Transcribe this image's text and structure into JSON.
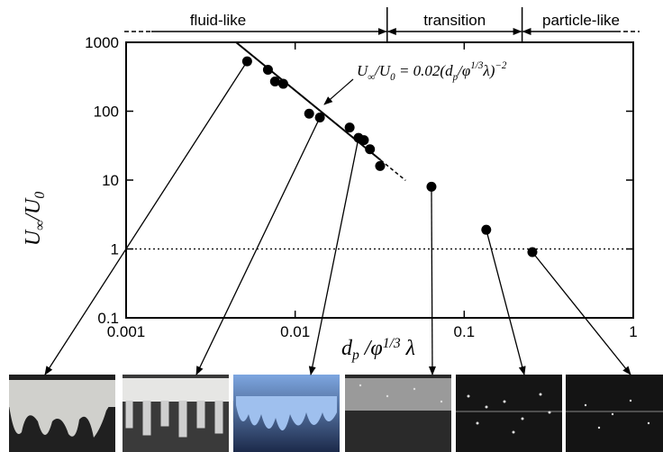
{
  "chart_data": {
    "type": "scatter",
    "xscale": "log",
    "yscale": "log",
    "xlim": [
      0.001,
      1
    ],
    "ylim": [
      0.1,
      1000
    ],
    "xticks": [
      0.001,
      0.01,
      0.1,
      1
    ],
    "yticks": [
      0.1,
      1,
      10,
      100,
      1000
    ],
    "x_label_parts": [
      "d",
      "p",
      " /φ",
      "1/3",
      " λ"
    ],
    "y_label_parts": [
      "U",
      "∞",
      "/U",
      "0"
    ],
    "equation_parts": [
      "U",
      "∞",
      "/U",
      "0",
      " = 0.02(d",
      "p",
      "/φ",
      "1/3",
      "λ)",
      "−2"
    ],
    "regimes": [
      "fluid-like",
      "transition",
      "particle-like"
    ],
    "regime_boundaries": [
      0.035,
      0.22
    ],
    "reference_line": 1,
    "fit": {
      "coefficient": 0.02,
      "exponent": -2,
      "solid_to": 0.032,
      "dashed_to": 0.045
    },
    "series": [
      {
        "color": "#000000",
        "x": [
          0.0052,
          0.0069,
          0.0076,
          0.0085,
          0.0121,
          0.014,
          0.021,
          0.0237,
          0.0255,
          0.0277,
          0.0318,
          0.064,
          0.135,
          0.253
        ],
        "values": [
          530,
          400,
          270,
          250,
          92,
          81,
          58,
          41,
          38,
          28,
          16,
          8,
          1.9,
          0.9
        ]
      }
    ]
  }
}
